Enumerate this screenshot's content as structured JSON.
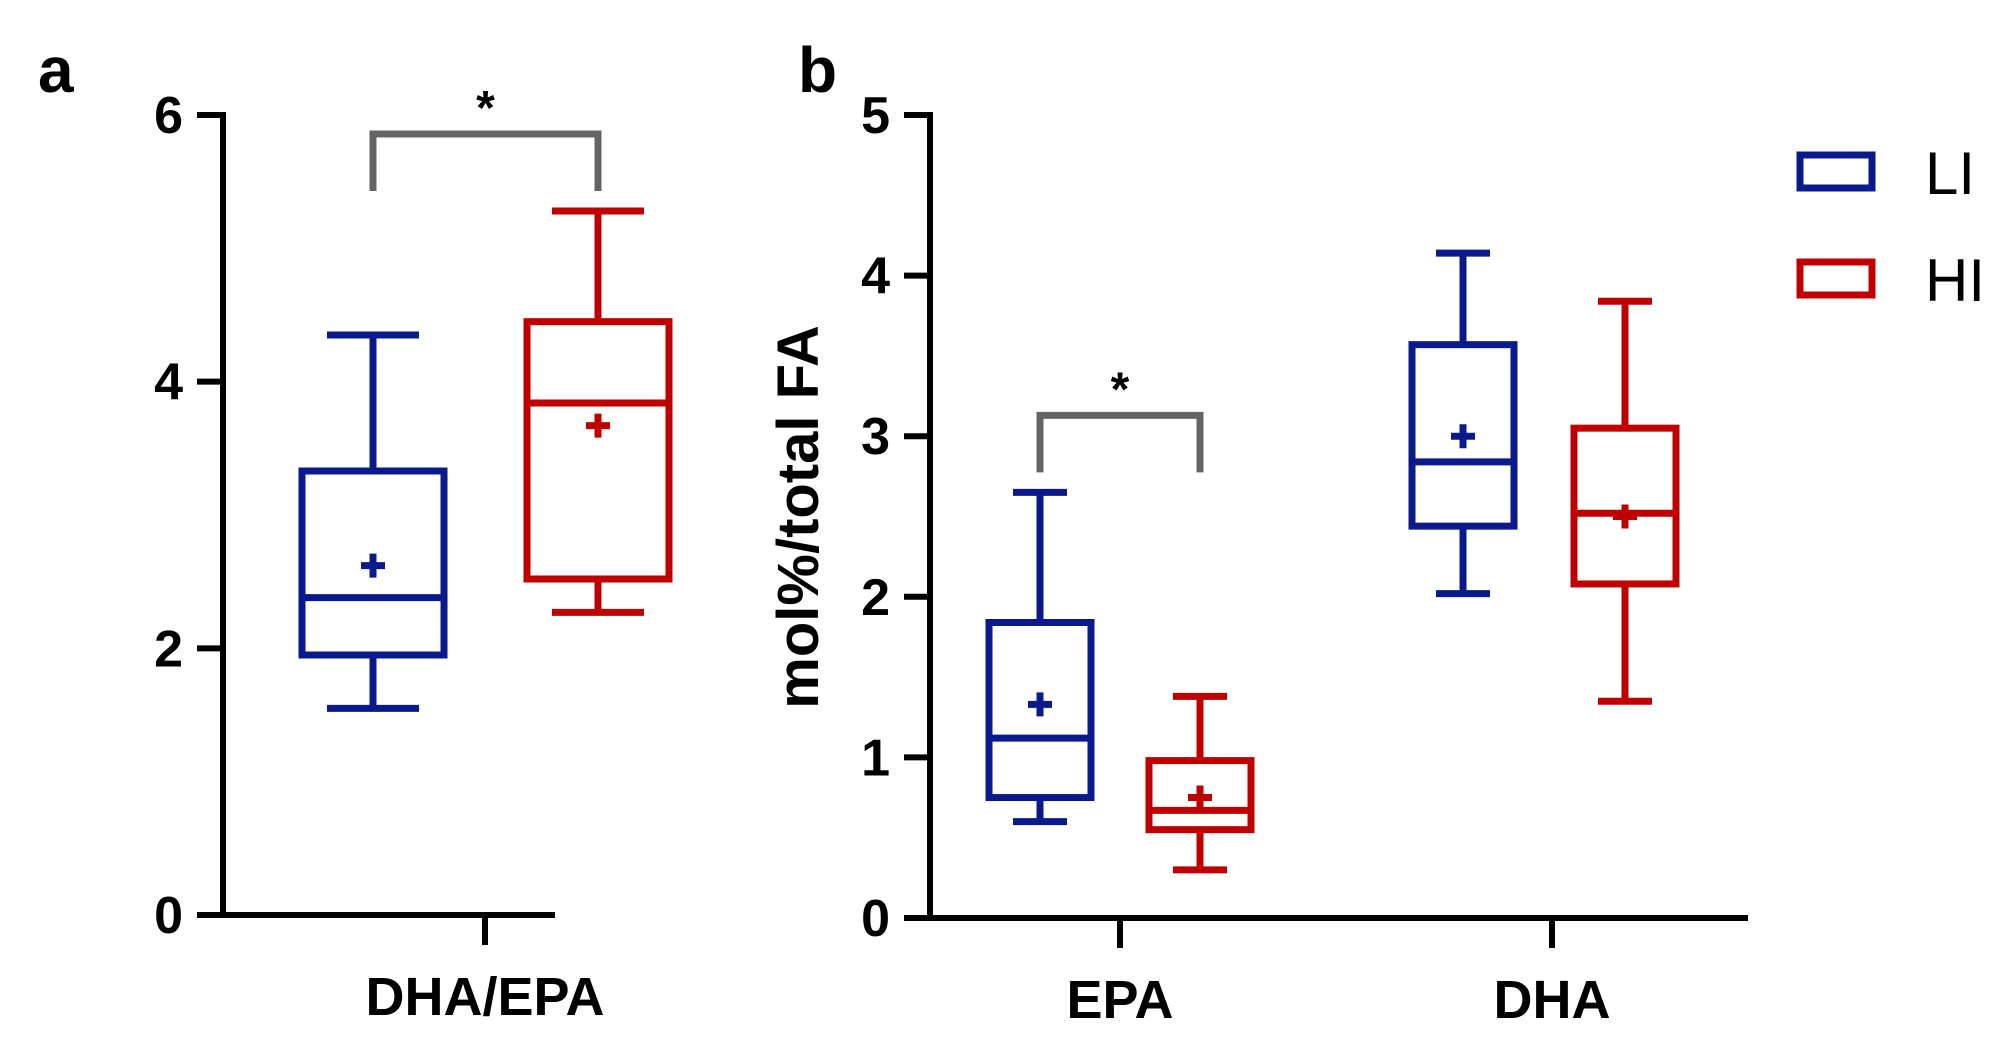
{
  "colors": {
    "LI": "#0a1a8c",
    "HI": "#c00000",
    "bracket": "#646464",
    "axis": "#000000"
  },
  "legend": [
    {
      "key": "LI",
      "label": "LI"
    },
    {
      "key": "HI",
      "label": "HI"
    }
  ],
  "chart_data": [
    {
      "panel": "a",
      "type": "box",
      "title": "",
      "xlabel": "",
      "ylabel": "",
      "ylim": [
        0,
        6
      ],
      "yticks": [
        0,
        2,
        4,
        6
      ],
      "categories": [
        "DHA/EPA"
      ],
      "series": [
        {
          "name": "LI",
          "category": "DHA/EPA",
          "min": 1.55,
          "q1": 1.95,
          "median": 2.38,
          "q3": 3.33,
          "max": 4.35,
          "mean": 2.62
        },
        {
          "name": "HI",
          "category": "DHA/EPA",
          "min": 2.27,
          "q1": 2.52,
          "median": 3.84,
          "q3": 4.45,
          "max": 5.28,
          "mean": 3.67
        }
      ],
      "significance": [
        {
          "category": "DHA/EPA",
          "label": "*"
        }
      ]
    },
    {
      "panel": "b",
      "type": "box",
      "title": "",
      "xlabel": "",
      "ylabel": "mol%/total FA",
      "ylim": [
        0,
        5
      ],
      "yticks": [
        0,
        1,
        2,
        3,
        4,
        5
      ],
      "categories": [
        "EPA",
        "DHA"
      ],
      "series": [
        {
          "name": "LI",
          "category": "EPA",
          "min": 0.6,
          "q1": 0.75,
          "median": 1.12,
          "q3": 1.84,
          "max": 2.65,
          "mean": 1.33
        },
        {
          "name": "HI",
          "category": "EPA",
          "min": 0.3,
          "q1": 0.55,
          "median": 0.67,
          "q3": 0.98,
          "max": 1.38,
          "mean": 0.75
        },
        {
          "name": "LI",
          "category": "DHA",
          "min": 2.02,
          "q1": 2.44,
          "median": 2.84,
          "q3": 3.57,
          "max": 4.14,
          "mean": 3.0
        },
        {
          "name": "HI",
          "category": "DHA",
          "min": 1.35,
          "q1": 2.08,
          "median": 2.52,
          "q3": 3.05,
          "max": 3.84,
          "mean": 2.5
        }
      ],
      "significance": [
        {
          "category": "EPA",
          "label": "*"
        }
      ]
    }
  ]
}
